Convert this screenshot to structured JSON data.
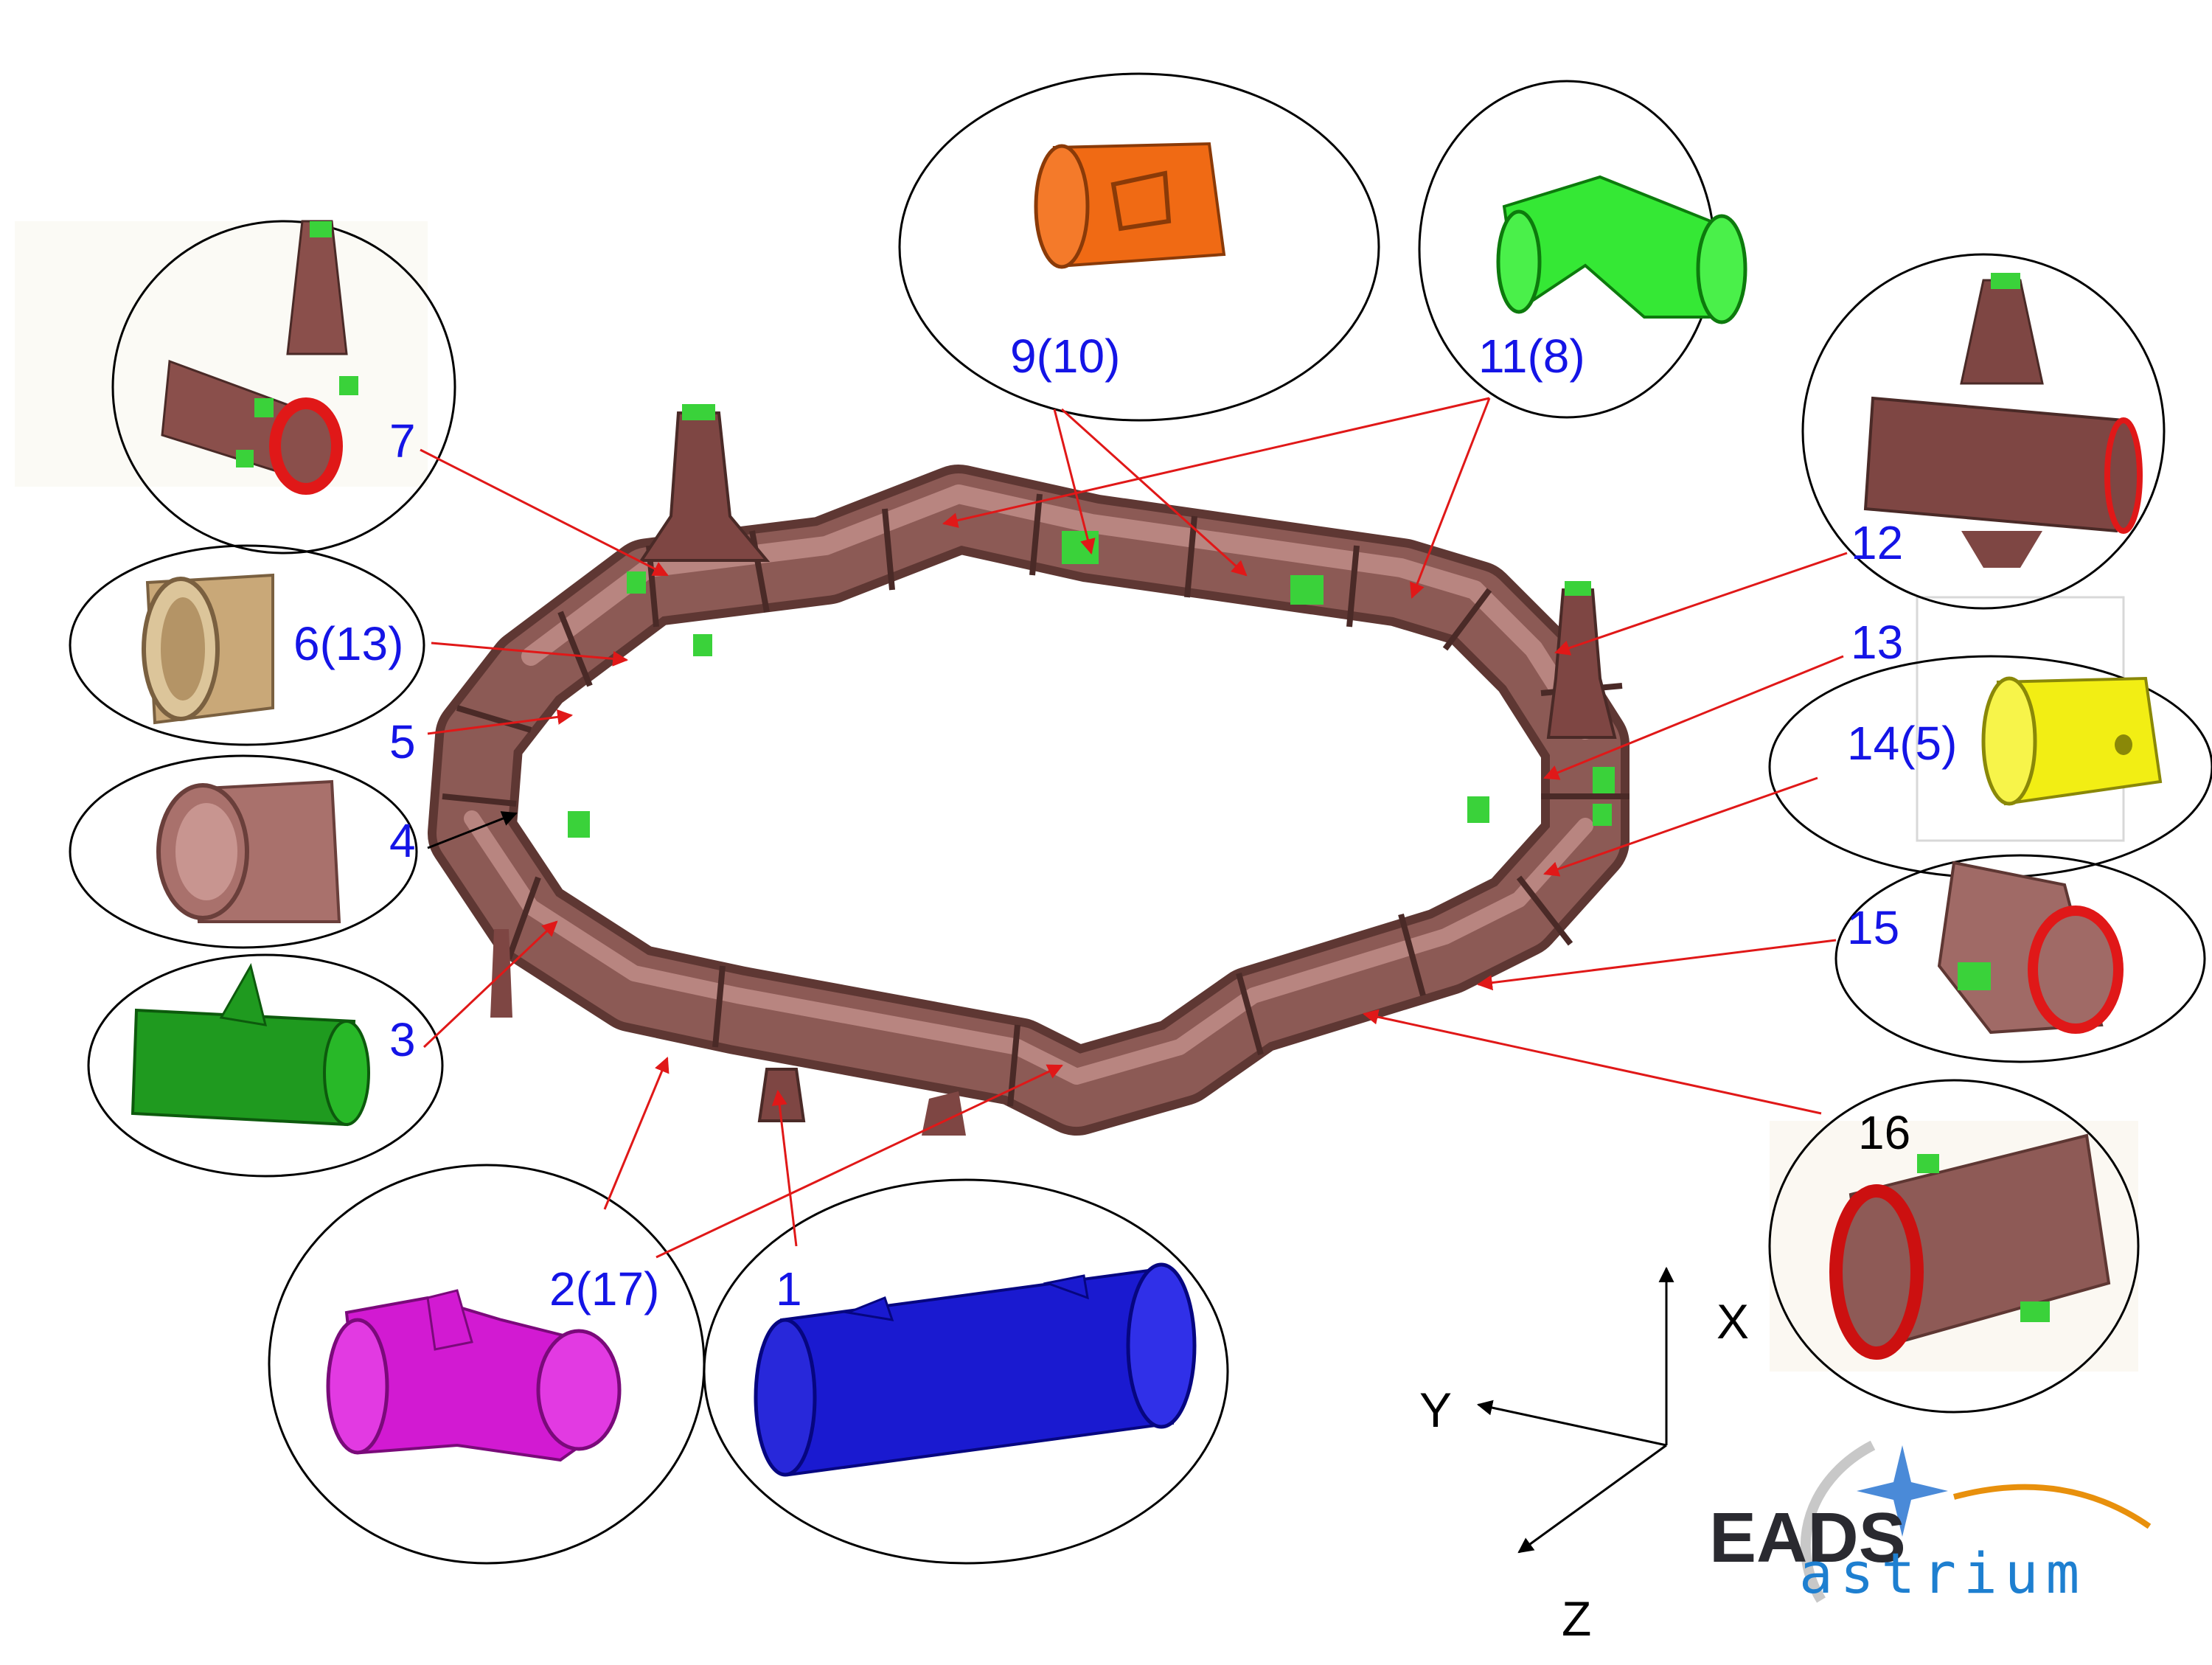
{
  "diagram": {
    "colors": {
      "ring": "#8c5a55",
      "ring_dark": "#5e3733",
      "ring_light": "#b88580",
      "label_blue": "#1414e6",
      "label_black": "#000000",
      "leader_red": "#e01818",
      "leader_black": "#000000",
      "green_pad": "#3ad23a",
      "part_colors": {
        "part_1": "#1a1ad0",
        "part_2": "#d21ad2",
        "part_3": "#1f9a1f",
        "part_4": "#a9716c",
        "part_6": "#c9a878",
        "part_7": "#8a4f4b",
        "part_9": "#f06a14",
        "part_11": "#35e835",
        "part_12": "#7e4643",
        "part_14": "#f2ee14",
        "part_15": "#a06a66",
        "part_16": "#8e5a56"
      }
    },
    "labels": {
      "part_1": "1",
      "part_2": "2(17)",
      "part_3": "3",
      "part_4": "4",
      "part_5": "5",
      "part_6": "6(13)",
      "part_7": "7",
      "part_9": "9(10)",
      "part_11": "11(8)",
      "part_12": "12",
      "part_13": "13",
      "part_14": "14(5)",
      "part_15": "15",
      "part_16": "16"
    },
    "axes": {
      "x": "X",
      "y": "Y",
      "z": "Z"
    },
    "logo": {
      "line1": "EADS",
      "line2": "astrium",
      "icon": "sparkle-star-icon"
    }
  }
}
